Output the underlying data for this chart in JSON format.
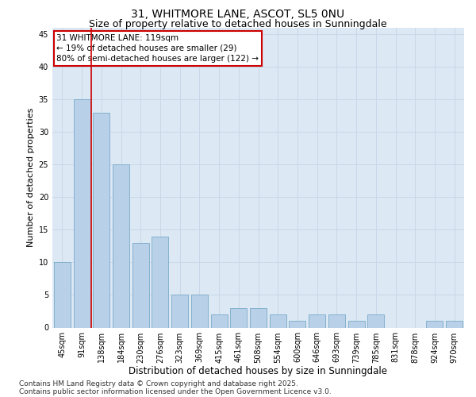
{
  "title1": "31, WHITMORE LANE, ASCOT, SL5 0NU",
  "title2": "Size of property relative to detached houses in Sunningdale",
  "xlabel": "Distribution of detached houses by size in Sunningdale",
  "ylabel": "Number of detached properties",
  "categories": [
    "45sqm",
    "91sqm",
    "138sqm",
    "184sqm",
    "230sqm",
    "276sqm",
    "323sqm",
    "369sqm",
    "415sqm",
    "461sqm",
    "508sqm",
    "554sqm",
    "600sqm",
    "646sqm",
    "693sqm",
    "739sqm",
    "785sqm",
    "831sqm",
    "878sqm",
    "924sqm",
    "970sqm"
  ],
  "values": [
    10,
    35,
    33,
    25,
    13,
    14,
    5,
    5,
    2,
    3,
    3,
    2,
    1,
    2,
    2,
    1,
    2,
    0,
    0,
    1,
    1
  ],
  "bar_color": "#b8d0e8",
  "bar_edge_color": "#7aaac8",
  "grid_color": "#c8d8e8",
  "bg_color": "#dce8f4",
  "vline_x": 1.5,
  "vline_color": "#cc0000",
  "annotation_text": "31 WHITMORE LANE: 119sqm\n← 19% of detached houses are smaller (29)\n80% of semi-detached houses are larger (122) →",
  "annotation_box_color": "#cc0000",
  "ylim": [
    0,
    46
  ],
  "yticks": [
    0,
    5,
    10,
    15,
    20,
    25,
    30,
    35,
    40,
    45
  ],
  "footnote1": "Contains HM Land Registry data © Crown copyright and database right 2025.",
  "footnote2": "Contains public sector information licensed under the Open Government Licence v3.0.",
  "title1_fontsize": 10,
  "title2_fontsize": 9,
  "xlabel_fontsize": 8.5,
  "ylabel_fontsize": 8,
  "tick_fontsize": 7,
  "annot_fontsize": 7.5,
  "footnote_fontsize": 6.5
}
